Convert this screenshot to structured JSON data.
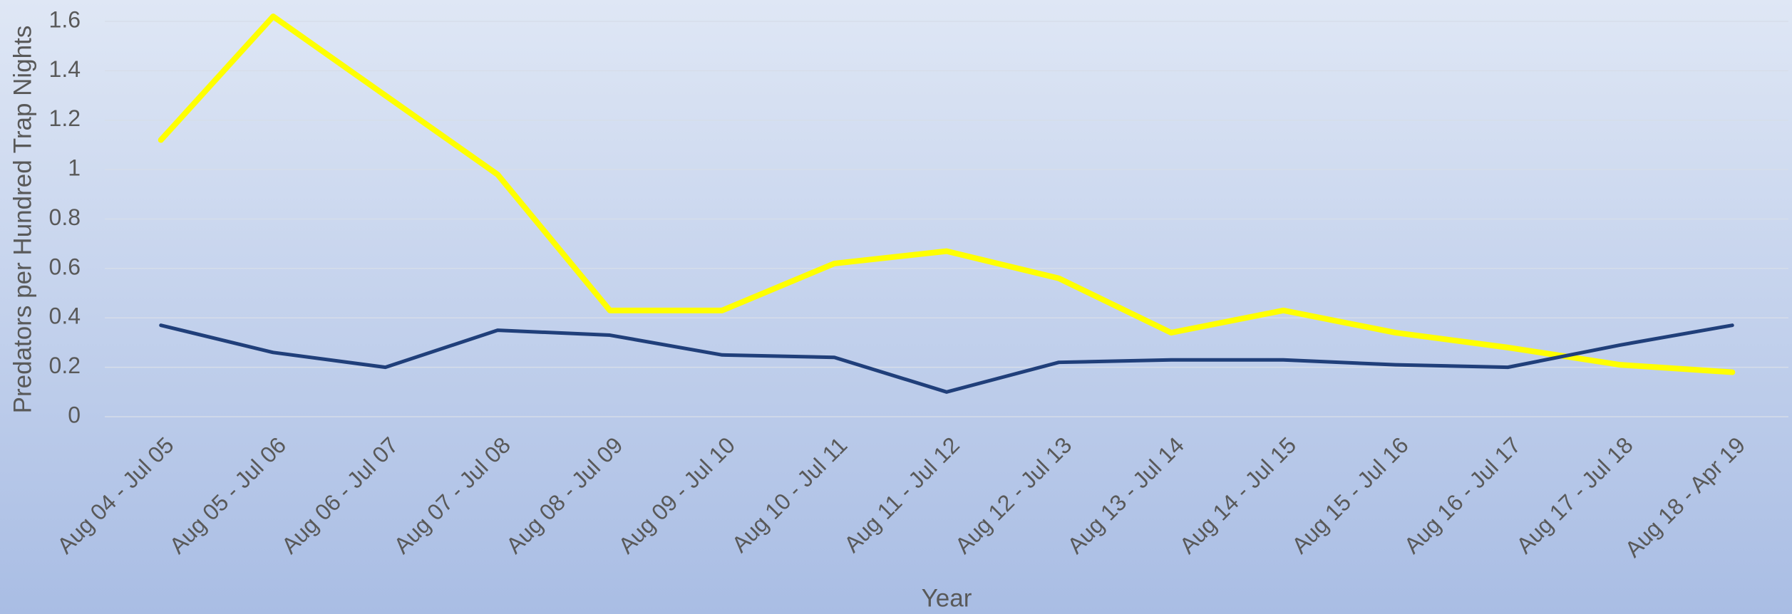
{
  "chart_data": {
    "type": "line",
    "x_label": "Year",
    "y_label": "Predators per Hundred Trap Nights",
    "categories": [
      "Aug 04 - Jul 05",
      "Aug 05 - Jul 06",
      "Aug 06 - Jul 07",
      "Aug 07 - Jul 08",
      "Aug 08 - Jul 09",
      "Aug 09 - Jul 10",
      "Aug 10 - Jul 11",
      "Aug 11 - Jul 12",
      "Aug 12 - Jul 13",
      "Aug 13 - Jul 14",
      "Aug 14 - Jul 15",
      "Aug 15 - Jul 16",
      "Aug 16 - Jul 17",
      "Aug 17 - Jul 18",
      "Aug 18 - Apr 19"
    ],
    "series": [
      {
        "color": "#ffff00",
        "values": [
          1.12,
          1.62,
          1.3,
          0.98,
          0.43,
          0.43,
          0.62,
          0.67,
          0.56,
          0.34,
          0.43,
          0.34,
          0.28,
          0.21,
          0.18
        ]
      },
      {
        "color": "#203f7a",
        "values": [
          0.37,
          0.26,
          0.2,
          0.35,
          0.33,
          0.25,
          0.24,
          0.1,
          0.22,
          0.23,
          0.23,
          0.21,
          0.2,
          0.29,
          0.37
        ]
      }
    ],
    "ylim": [
      0,
      1.6
    ],
    "yticks": [
      0,
      0.2,
      0.4,
      0.6,
      0.8,
      1,
      1.2,
      1.4,
      1.6
    ],
    "grid": true
  }
}
